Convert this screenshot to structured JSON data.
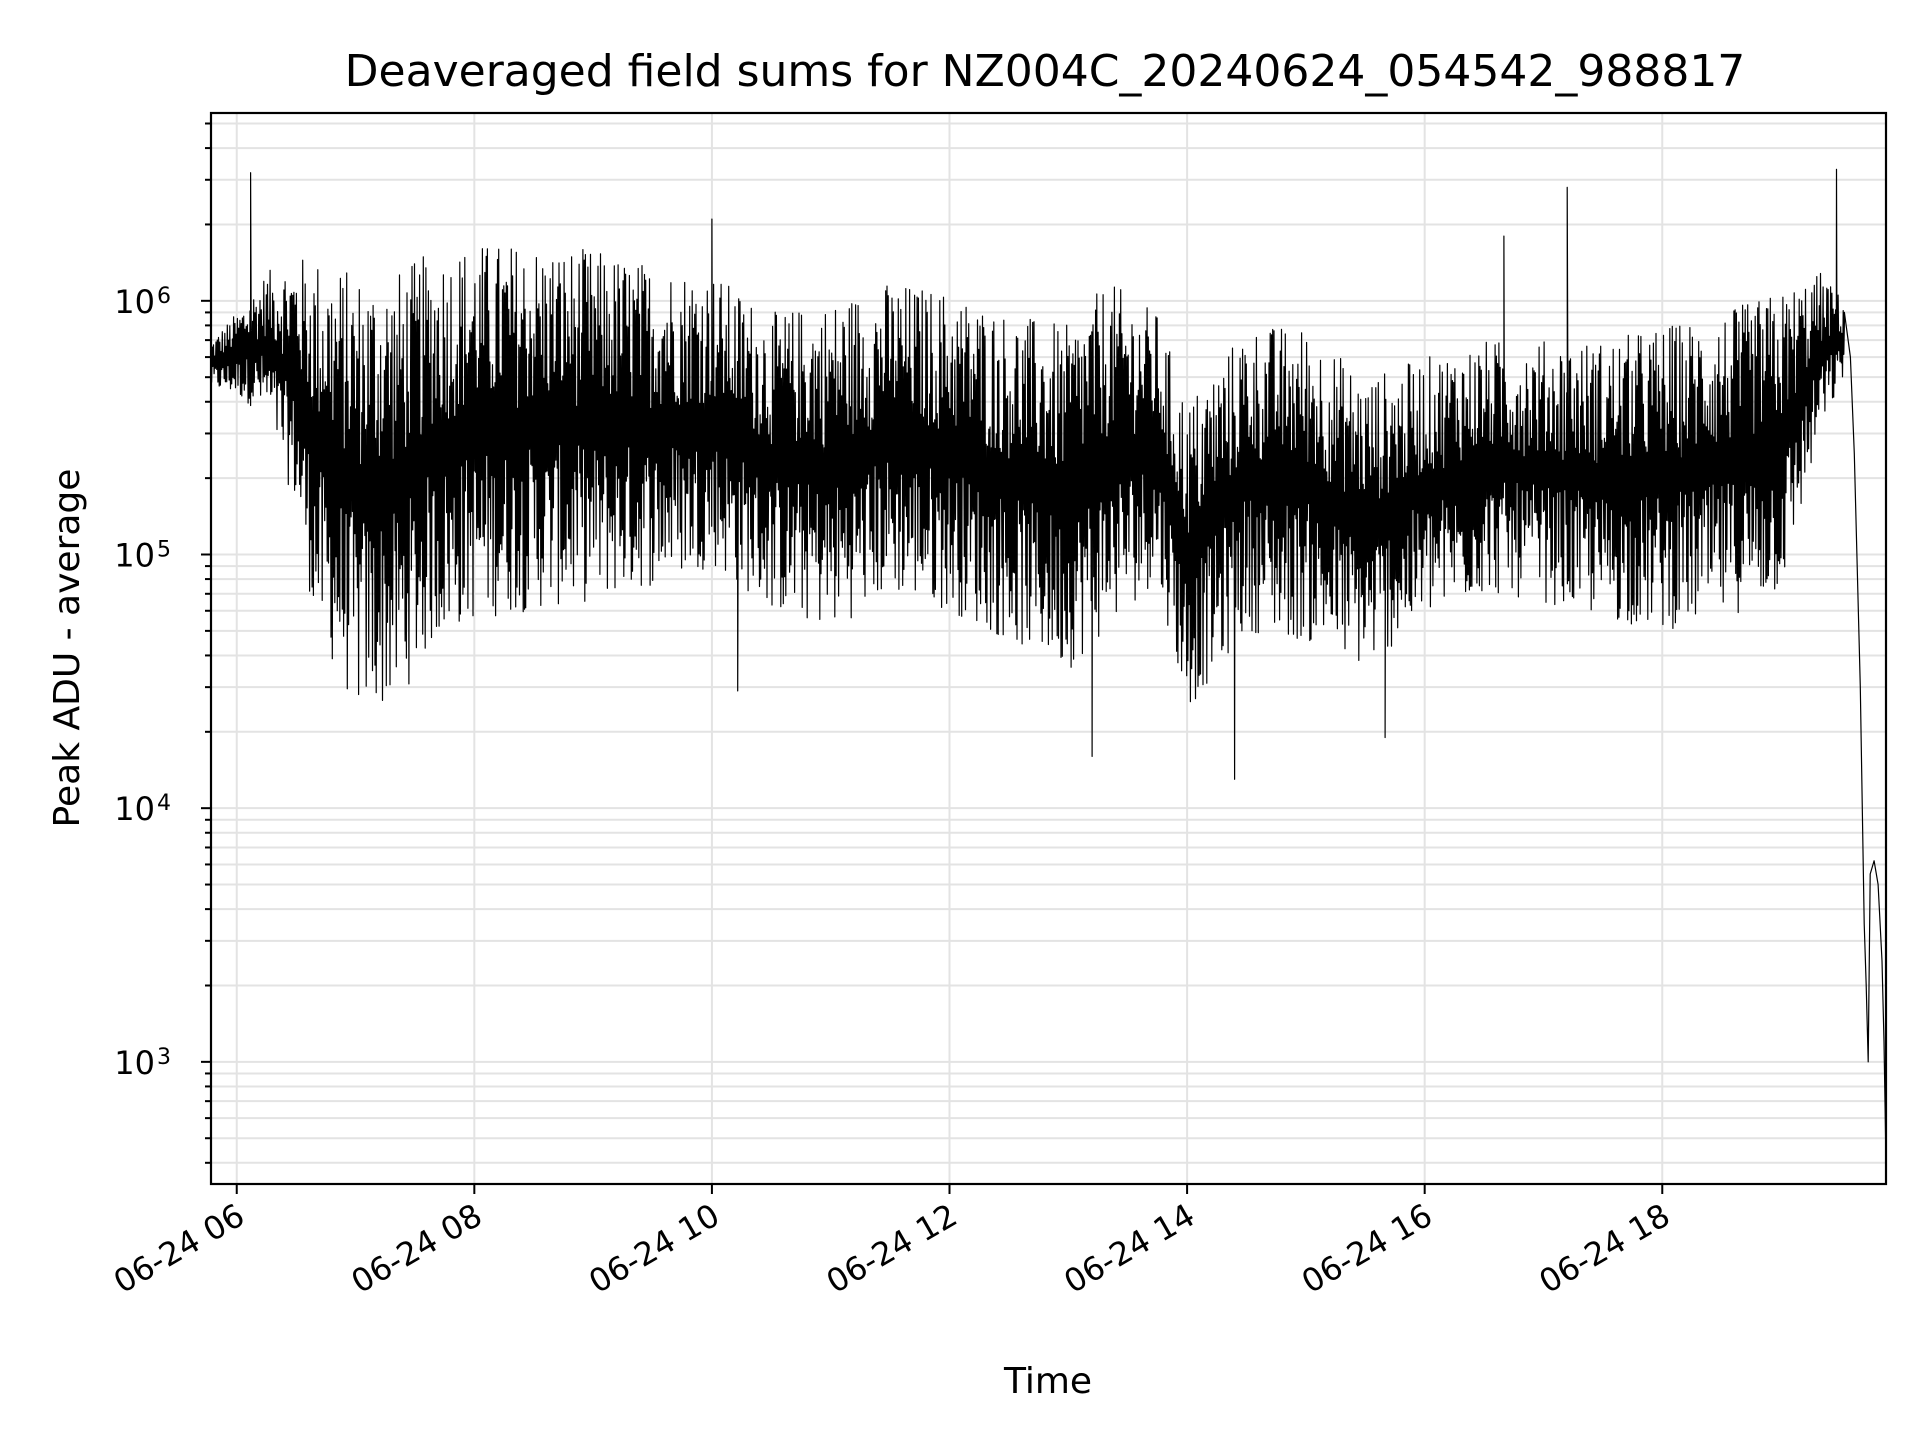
{
  "chart_data": {
    "type": "line",
    "title": "Deaveraged field sums for NZ004C_20240624_054542_988817",
    "xlabel": "Time",
    "ylabel": "Peak ADU - average",
    "y_scale": "log",
    "ylim": [
      330,
      5500000
    ],
    "xlim": [
      "2024-06-24 05:47",
      "2024-06-24 19:53"
    ],
    "grid": true,
    "x_ticks": [
      {
        "value": "2024-06-24 06:00",
        "label": "06-24 06"
      },
      {
        "value": "2024-06-24 08:00",
        "label": "06-24 08"
      },
      {
        "value": "2024-06-24 10:00",
        "label": "06-24 10"
      },
      {
        "value": "2024-06-24 12:00",
        "label": "06-24 12"
      },
      {
        "value": "2024-06-24 14:00",
        "label": "06-24 14"
      },
      {
        "value": "2024-06-24 16:00",
        "label": "06-24 16"
      },
      {
        "value": "2024-06-24 18:00",
        "label": "06-24 18"
      }
    ],
    "y_ticks": [
      {
        "value": 1000,
        "base": "10",
        "exp": "3"
      },
      {
        "value": 10000,
        "base": "10",
        "exp": "4"
      },
      {
        "value": 100000,
        "base": "10",
        "exp": "5"
      },
      {
        "value": 1000000,
        "base": "10",
        "exp": "6"
      }
    ],
    "series": [
      {
        "color": "#000000",
        "envelope": [
          {
            "t": "2024-06-24 05:47",
            "low": 450000,
            "high": 700000
          },
          {
            "t": "2024-06-24 06:00",
            "low": 420000,
            "high": 900000
          },
          {
            "t": "2024-06-24 06:15",
            "low": 350000,
            "high": 1300000
          },
          {
            "t": "2024-06-24 06:30",
            "low": 150000,
            "high": 1500000
          },
          {
            "t": "2024-06-24 06:40",
            "low": 50000,
            "high": 1500000
          },
          {
            "t": "2024-06-24 07:00",
            "low": 24000,
            "high": 1300000
          },
          {
            "t": "2024-06-24 07:20",
            "low": 25000,
            "high": 1300000
          },
          {
            "t": "2024-06-24 07:40",
            "low": 45000,
            "high": 1600000
          },
          {
            "t": "2024-06-24 08:00",
            "low": 55000,
            "high": 1700000
          },
          {
            "t": "2024-06-24 08:30",
            "low": 60000,
            "high": 1700000
          },
          {
            "t": "2024-06-24 09:00",
            "low": 65000,
            "high": 1600000
          },
          {
            "t": "2024-06-24 09:30",
            "low": 75000,
            "high": 1400000
          },
          {
            "t": "2024-06-24 10:00",
            "low": 90000,
            "high": 1300000
          },
          {
            "t": "2024-06-24 10:30",
            "low": 60000,
            "high": 900000
          },
          {
            "t": "2024-06-24 11:00",
            "low": 50000,
            "high": 1000000
          },
          {
            "t": "2024-06-24 11:30",
            "low": 70000,
            "high": 1200000
          },
          {
            "t": "2024-06-24 12:00",
            "low": 60000,
            "high": 1100000
          },
          {
            "t": "2024-06-24 12:30",
            "low": 45000,
            "high": 900000
          },
          {
            "t": "2024-06-24 13:00",
            "low": 35000,
            "high": 800000
          },
          {
            "t": "2024-06-24 13:20",
            "low": 50000,
            "high": 1200000
          },
          {
            "t": "2024-06-24 13:45",
            "low": 80000,
            "high": 900000
          },
          {
            "t": "2024-06-24 14:00",
            "low": 24000,
            "high": 400000
          },
          {
            "t": "2024-06-24 14:30",
            "low": 50000,
            "high": 800000
          },
          {
            "t": "2024-06-24 15:00",
            "low": 45000,
            "high": 800000
          },
          {
            "t": "2024-06-24 15:30",
            "low": 35000,
            "high": 500000
          },
          {
            "t": "2024-06-24 16:00",
            "low": 55000,
            "high": 600000
          },
          {
            "t": "2024-06-24 16:30",
            "low": 70000,
            "high": 700000
          },
          {
            "t": "2024-06-24 17:00",
            "low": 65000,
            "high": 700000
          },
          {
            "t": "2024-06-24 17:30",
            "low": 55000,
            "high": 700000
          },
          {
            "t": "2024-06-24 18:00",
            "low": 50000,
            "high": 800000
          },
          {
            "t": "2024-06-24 18:30",
            "low": 55000,
            "high": 900000
          },
          {
            "t": "2024-06-24 19:00",
            "low": 70000,
            "high": 1100000
          },
          {
            "t": "2024-06-24 19:20",
            "low": 300000,
            "high": 1300000
          },
          {
            "t": "2024-06-24 19:32",
            "low": 500000,
            "high": 1000000
          }
        ],
        "spikes": [
          {
            "t": "2024-06-24 06:07",
            "value": 3200000
          },
          {
            "t": "2024-06-24 10:00",
            "value": 2100000
          },
          {
            "t": "2024-06-24 17:12",
            "value": 2800000
          },
          {
            "t": "2024-06-24 16:40",
            "value": 1800000
          },
          {
            "t": "2024-06-24 13:12",
            "value": 16000
          },
          {
            "t": "2024-06-24 14:24",
            "value": 13000
          },
          {
            "t": "2024-06-24 10:13",
            "value": 29000
          },
          {
            "t": "2024-06-24 15:40",
            "value": 19000
          },
          {
            "t": "2024-06-24 19:28",
            "value": 3300000
          }
        ],
        "tail": [
          {
            "t": "2024-06-24 19:32",
            "value": 900000
          },
          {
            "t": "2024-06-24 19:35",
            "value": 600000
          },
          {
            "t": "2024-06-24 19:37",
            "value": 250000
          },
          {
            "t": "2024-06-24 19:40",
            "value": 30000
          },
          {
            "t": "2024-06-24 19:42",
            "value": 3500
          },
          {
            "t": "2024-06-24 19:43",
            "value": 2000
          },
          {
            "t": "2024-06-24 19:44",
            "value": 1000
          },
          {
            "t": "2024-06-24 19:45",
            "value": 5500
          },
          {
            "t": "2024-06-24 19:47",
            "value": 6200
          },
          {
            "t": "2024-06-24 19:49",
            "value": 5000
          },
          {
            "t": "2024-06-24 19:51",
            "value": 2500
          },
          {
            "t": "2024-06-24 19:52",
            "value": 1200
          },
          {
            "t": "2024-06-24 19:53",
            "value": 400
          }
        ]
      }
    ]
  }
}
